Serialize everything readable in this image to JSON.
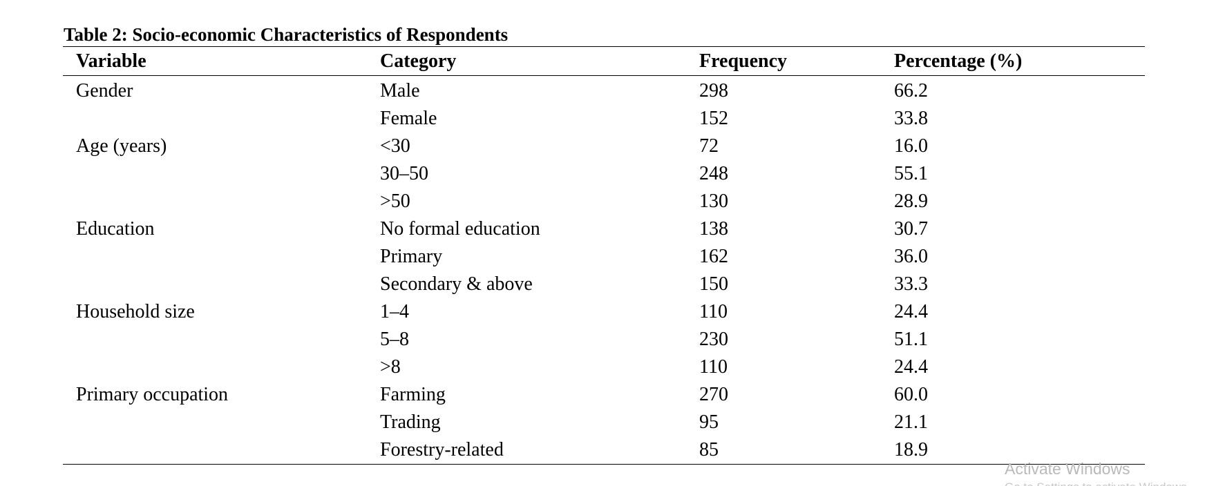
{
  "table": {
    "caption": "Table 2: Socio-economic Characteristics of Respondents",
    "headers": [
      "Variable",
      "Category",
      "Frequency",
      "Percentage (%)"
    ],
    "rows": [
      {
        "variable": "Gender",
        "category": "Male",
        "frequency": "298",
        "percentage": "66.2"
      },
      {
        "variable": "",
        "category": "Female",
        "frequency": "152",
        "percentage": "33.8"
      },
      {
        "variable": "Age (years)",
        "category": "<30",
        "frequency": "72",
        "percentage": "16.0"
      },
      {
        "variable": "",
        "category": "30–50",
        "frequency": "248",
        "percentage": "55.1"
      },
      {
        "variable": "",
        "category": ">50",
        "frequency": "130",
        "percentage": "28.9"
      },
      {
        "variable": "Education",
        "category": "No formal education",
        "frequency": "138",
        "percentage": "30.7"
      },
      {
        "variable": "",
        "category": "Primary",
        "frequency": "162",
        "percentage": "36.0"
      },
      {
        "variable": "",
        "category": "Secondary & above",
        "frequency": "150",
        "percentage": "33.3"
      },
      {
        "variable": "Household size",
        "category": "1–4",
        "frequency": "110",
        "percentage": "24.4"
      },
      {
        "variable": "",
        "category": "5–8",
        "frequency": "230",
        "percentage": "51.1"
      },
      {
        "variable": "",
        "category": ">8",
        "frequency": "110",
        "percentage": "24.4"
      },
      {
        "variable": "Primary occupation",
        "category": "Farming",
        "frequency": "270",
        "percentage": "60.0"
      },
      {
        "variable": "",
        "category": "Trading",
        "frequency": "95",
        "percentage": "21.1"
      },
      {
        "variable": "",
        "category": "Forestry-related",
        "frequency": "85",
        "percentage": "18.9"
      }
    ]
  },
  "overlay": {
    "watermark_title": "Activate Windows",
    "watermark_subtitle": "Go to Settings to activate Windows."
  }
}
